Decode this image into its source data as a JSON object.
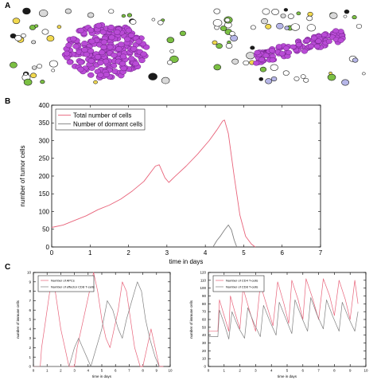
{
  "panel_labels": [
    "A",
    "B",
    "C"
  ],
  "chart_data": [
    {
      "type": "line",
      "panel": "B",
      "xlabel": "time in days",
      "ylabel": "number of tumor cells",
      "xlim": [
        0,
        7
      ],
      "ylim": [
        0,
        400
      ],
      "xticks": [
        "0",
        "1",
        "2",
        "3",
        "4",
        "5",
        "6",
        "7"
      ],
      "yticks": [
        "0",
        "50",
        "100",
        "150",
        "200",
        "250",
        "300",
        "350",
        "400"
      ],
      "legend_position": "top-left",
      "grid": false,
      "series": [
        {
          "name": "Total number of cells",
          "color": "#e8637a",
          "points": [
            [
              0,
              55
            ],
            [
              0.3,
              62
            ],
            [
              0.6,
              75
            ],
            [
              0.9,
              88
            ],
            [
              1.2,
              105
            ],
            [
              1.5,
              118
            ],
            [
              1.8,
              135
            ],
            [
              2.1,
              158
            ],
            [
              2.4,
              185
            ],
            [
              2.7,
              228
            ],
            [
              2.8,
              232
            ],
            [
              2.95,
              195
            ],
            [
              3.05,
              182
            ],
            [
              3.2,
              198
            ],
            [
              3.5,
              228
            ],
            [
              3.8,
              262
            ],
            [
              4.1,
              300
            ],
            [
              4.3,
              330
            ],
            [
              4.45,
              355
            ],
            [
              4.5,
              358
            ],
            [
              4.6,
              320
            ],
            [
              4.75,
              200
            ],
            [
              4.9,
              90
            ],
            [
              5.05,
              30
            ],
            [
              5.2,
              8
            ],
            [
              5.3,
              0
            ]
          ]
        },
        {
          "name": "Number of dormant cells",
          "color": "#808080",
          "points": [
            [
              4.2,
              0
            ],
            [
              4.3,
              18
            ],
            [
              4.4,
              32
            ],
            [
              4.5,
              48
            ],
            [
              4.6,
              62
            ],
            [
              4.68,
              48
            ],
            [
              4.75,
              20
            ],
            [
              4.82,
              0
            ]
          ]
        }
      ]
    },
    {
      "type": "line",
      "panel": "C-left",
      "xlabel": "time in days",
      "ylabel": "number of immune cells",
      "xlim": [
        0,
        10
      ],
      "ylim": [
        0,
        10
      ],
      "xticks": [
        "0",
        "1",
        "2",
        "3",
        "4",
        "5",
        "6",
        "7",
        "8",
        "9",
        "10"
      ],
      "yticks": [
        "0",
        "1",
        "2",
        "3",
        "4",
        "5",
        "6",
        "7",
        "8",
        "9",
        "10"
      ],
      "legend_position": "top-left",
      "grid": false,
      "series": [
        {
          "name": "Number of APCs",
          "color": "#e8637a",
          "points": [
            [
              0,
              0
            ],
            [
              0.5,
              0
            ],
            [
              0.6,
              2
            ],
            [
              0.8,
              4
            ],
            [
              1,
              6
            ],
            [
              1.2,
              8
            ],
            [
              1.5,
              9
            ],
            [
              1.7,
              7
            ],
            [
              2,
              4
            ],
            [
              2.3,
              2
            ],
            [
              2.6,
              0
            ],
            [
              3,
              0
            ],
            [
              3.2,
              2
            ],
            [
              3.5,
              4
            ],
            [
              3.8,
              6
            ],
            [
              4.1,
              8
            ],
            [
              4.4,
              10
            ],
            [
              4.7,
              8
            ],
            [
              5,
              5
            ],
            [
              5.3,
              3
            ],
            [
              5.6,
              2
            ],
            [
              5.9,
              4
            ],
            [
              6.2,
              6
            ],
            [
              6.5,
              9
            ],
            [
              6.8,
              8
            ],
            [
              7.1,
              5
            ],
            [
              7.4,
              2
            ],
            [
              7.8,
              0
            ],
            [
              8,
              0
            ],
            [
              8.3,
              2
            ],
            [
              8.6,
              4
            ],
            [
              8.9,
              2
            ],
            [
              9.2,
              0
            ],
            [
              9.5,
              0
            ]
          ]
        },
        {
          "name": "Number of effector CD8 T-cells",
          "color": "#808080",
          "points": [
            [
              0,
              0
            ],
            [
              2.6,
              0
            ],
            [
              2.8,
              1
            ],
            [
              3,
              2
            ],
            [
              3.3,
              3
            ],
            [
              3.6,
              2
            ],
            [
              3.9,
              1
            ],
            [
              4.2,
              0
            ],
            [
              4.6,
              2
            ],
            [
              5,
              4
            ],
            [
              5.4,
              7
            ],
            [
              5.8,
              6
            ],
            [
              6.2,
              4
            ],
            [
              6.5,
              3
            ],
            [
              6.8,
              5
            ],
            [
              7.2,
              7
            ],
            [
              7.6,
              9
            ],
            [
              7.9,
              8
            ],
            [
              8.2,
              5
            ],
            [
              8.5,
              3
            ],
            [
              8.9,
              1
            ],
            [
              9.2,
              0
            ]
          ]
        }
      ]
    },
    {
      "type": "line",
      "panel": "C-right",
      "xlabel": "time in days",
      "ylabel": "number of immune cells",
      "xlim": [
        0,
        10
      ],
      "ylim": [
        0,
        120
      ],
      "xticks": [
        "0",
        "1",
        "2",
        "3",
        "4",
        "5",
        "6",
        "7",
        "8",
        "9",
        "10"
      ],
      "yticks": [
        "0",
        "10",
        "20",
        "30",
        "40",
        "50",
        "60",
        "70",
        "80",
        "90",
        "100",
        "110",
        "120"
      ],
      "legend_position": "top-left",
      "grid": false,
      "series": [
        {
          "name": "Number of CD4 T-cells",
          "color": "#e8637a",
          "points": [
            [
              0,
              45
            ],
            [
              0.6,
              45
            ],
            [
              0.7,
              85
            ],
            [
              1,
              65
            ],
            [
              1.3,
              45
            ],
            [
              1.4,
              90
            ],
            [
              1.7,
              68
            ],
            [
              2,
              48
            ],
            [
              2.2,
              100
            ],
            [
              2.6,
              72
            ],
            [
              3,
              45
            ],
            [
              3.3,
              105
            ],
            [
              3.7,
              78
            ],
            [
              4.1,
              52
            ],
            [
              4.4,
              108
            ],
            [
              4.8,
              80
            ],
            [
              5.1,
              55
            ],
            [
              5.3,
              110
            ],
            [
              5.7,
              85
            ],
            [
              6,
              60
            ],
            [
              6.2,
              112
            ],
            [
              6.6,
              88
            ],
            [
              7,
              60
            ],
            [
              7.3,
              112
            ],
            [
              7.7,
              90
            ],
            [
              8,
              65
            ],
            [
              8.3,
              110
            ],
            [
              8.7,
              85
            ],
            [
              9,
              60
            ],
            [
              9.3,
              110
            ],
            [
              9.5,
              80
            ]
          ]
        },
        {
          "name": "Number of CD8 T-cells",
          "color": "#808080",
          "points": [
            [
              0,
              38
            ],
            [
              0.6,
              38
            ],
            [
              0.7,
              72
            ],
            [
              1,
              55
            ],
            [
              1.3,
              35
            ],
            [
              1.5,
              70
            ],
            [
              1.9,
              50
            ],
            [
              2.3,
              36
            ],
            [
              2.5,
              75
            ],
            [
              2.9,
              55
            ],
            [
              3.3,
              38
            ],
            [
              3.5,
              78
            ],
            [
              3.9,
              58
            ],
            [
              4.3,
              40
            ],
            [
              4.5,
              82
            ],
            [
              4.9,
              62
            ],
            [
              5.3,
              42
            ],
            [
              5.5,
              85
            ],
            [
              5.9,
              64
            ],
            [
              6.3,
              45
            ],
            [
              6.5,
              88
            ],
            [
              6.9,
              66
            ],
            [
              7.3,
              48
            ],
            [
              7.5,
              85
            ],
            [
              7.9,
              64
            ],
            [
              8.3,
              45
            ],
            [
              8.5,
              82
            ],
            [
              8.9,
              62
            ],
            [
              9.3,
              45
            ],
            [
              9.5,
              70
            ]
          ]
        }
      ]
    }
  ]
}
